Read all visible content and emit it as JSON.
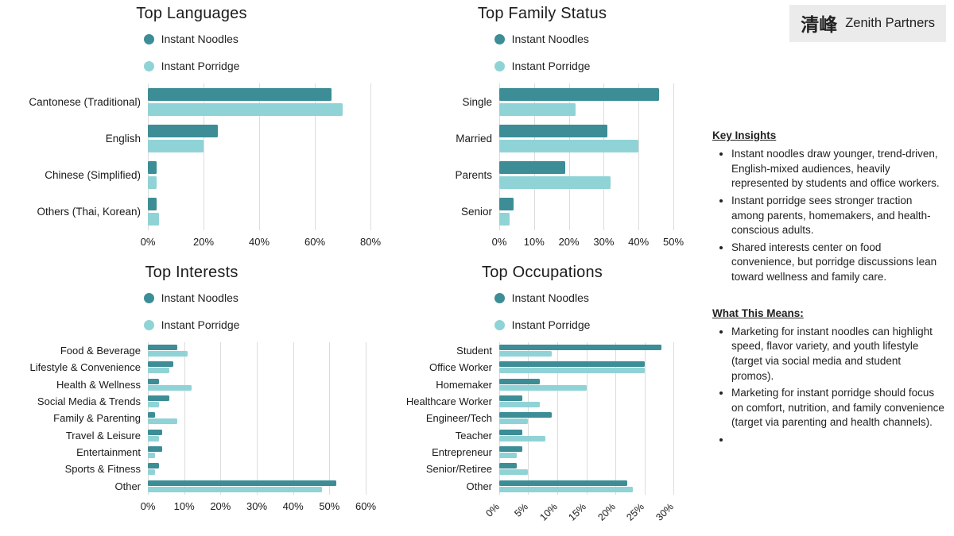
{
  "brand": {
    "logo_glyph": "清峰",
    "company": "Zenith Partners"
  },
  "colors": {
    "noodles": "#3c8d96",
    "porridge": "#90d3d6",
    "grid": "#dcdcdc",
    "logo_bg": "#ebebeb"
  },
  "chart_data": [
    {
      "id": "top-languages",
      "type": "bar",
      "orientation": "horizontal",
      "title": "Top Languages",
      "categories": [
        "Cantonese (Traditional)",
        "English",
        "Chinese (Simplified)",
        "Others (Thai, Korean)"
      ],
      "series": [
        {
          "name": "Instant Noodles",
          "values": [
            66,
            25,
            3,
            3
          ]
        },
        {
          "name": "Instant Porridge",
          "values": [
            70,
            20,
            3,
            4
          ]
        }
      ],
      "xlim": [
        0,
        80
      ],
      "ticks": [
        0,
        20,
        40,
        60,
        80
      ],
      "tick_format": "percent",
      "grid": true,
      "legend_position": "top-center"
    },
    {
      "id": "top-family-status",
      "type": "bar",
      "orientation": "horizontal",
      "title": "Top Family Status",
      "categories": [
        "Single",
        "Married",
        "Parents",
        "Senior"
      ],
      "series": [
        {
          "name": "Instant Noodles",
          "values": [
            46,
            31,
            19,
            4
          ]
        },
        {
          "name": "Instant Porridge",
          "values": [
            22,
            40,
            32,
            3
          ]
        }
      ],
      "xlim": [
        0,
        50
      ],
      "ticks": [
        0,
        10,
        20,
        30,
        40,
        50
      ],
      "tick_format": "percent",
      "grid": true,
      "legend_position": "top-center"
    },
    {
      "id": "top-interests",
      "type": "bar",
      "orientation": "horizontal",
      "title": "Top Interests",
      "categories": [
        "Food & Beverage",
        "Lifestyle & Convenience",
        "Health & Wellness",
        "Social Media & Trends",
        "Family & Parenting",
        "Travel & Leisure",
        "Entertainment",
        "Sports & Fitness",
        "Other"
      ],
      "series": [
        {
          "name": "Instant Noodles",
          "values": [
            8,
            7,
            3,
            6,
            2,
            4,
            4,
            3,
            52
          ]
        },
        {
          "name": "Instant Porridge",
          "values": [
            11,
            6,
            12,
            3,
            8,
            3,
            2,
            2,
            48
          ]
        }
      ],
      "xlim": [
        0,
        60
      ],
      "ticks": [
        0,
        10,
        20,
        30,
        40,
        50,
        60
      ],
      "tick_format": "percent",
      "grid": true,
      "legend_position": "top-center"
    },
    {
      "id": "top-occupations",
      "type": "bar",
      "orientation": "horizontal",
      "title": "Top Occupations",
      "categories": [
        "Student",
        "Office Worker",
        "Homemaker",
        "Healthcare Worker",
        "Engineer/Tech",
        "Teacher",
        "Entrepreneur",
        "Senior/Retiree",
        "Other"
      ],
      "series": [
        {
          "name": "Instant Noodles",
          "values": [
            28,
            25,
            7,
            4,
            9,
            4,
            4,
            3,
            22
          ]
        },
        {
          "name": "Instant Porridge",
          "values": [
            9,
            25,
            15,
            7,
            5,
            8,
            3,
            5,
            23
          ]
        }
      ],
      "xlim": [
        0,
        30
      ],
      "ticks": [
        0,
        5,
        10,
        15,
        20,
        25,
        30
      ],
      "tick_format": "percent",
      "rotate_ticks": 45,
      "grid": true,
      "legend_position": "top-center"
    }
  ],
  "insights": {
    "heading": "Key Insights",
    "bullets": [
      "Instant noodles draw younger, trend-driven, English-mixed audiences, heavily represented by students and office workers.",
      "Instant porridge sees stronger traction among parents, homemakers, and health-conscious adults.",
      "Shared interests center on food convenience, but porridge discussions lean toward wellness and family care."
    ]
  },
  "implications": {
    "heading": "What This Means:",
    "bullets": [
      "Marketing for instant noodles can highlight speed, flavor variety, and youth lifestyle (target via social media and student promos).",
      "Marketing for instant porridge should focus on comfort, nutrition, and family convenience (target via parenting and health channels).",
      ""
    ]
  }
}
